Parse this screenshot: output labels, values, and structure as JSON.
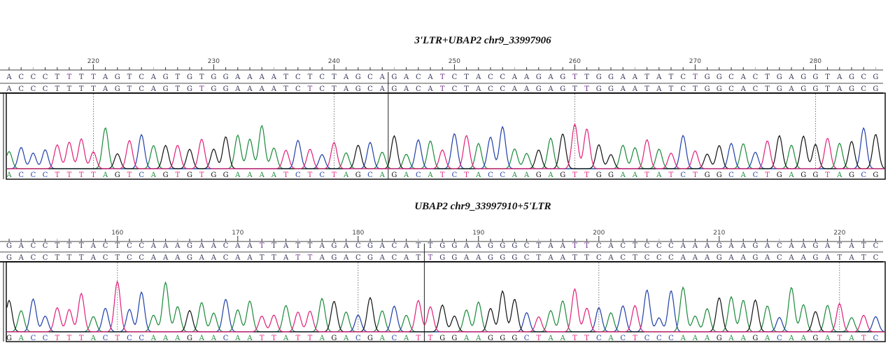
{
  "chart_data": [
    {
      "type": "line",
      "title": "3'LTR+UBAP2  chr9_33997906",
      "start_position": 213,
      "tick_labels": [
        "220",
        "230",
        "240",
        "250",
        "260",
        "270",
        "280"
      ],
      "segments": [
        "ACCCTTTTAGTCAGTGTGGAAAATCTCTAGCA",
        "GACATCTACCAAGAGTTGGAATATCTGGCACTGAGGTAGCG"
      ],
      "marked_positions": [
        220,
        240,
        260,
        280
      ]
    },
    {
      "type": "line",
      "title": "UBAP2  chr9_33997910+5'LTR",
      "start_position": 151,
      "tick_labels": [
        "160",
        "170",
        "180",
        "190",
        "200",
        "210",
        "220"
      ],
      "segments": [
        "GACCTTTACTCCAAAGAACAATTATTAGACGACAT",
        "TGGAAGGGCTAATTCACTCCCAAAGAAGACAAGATATC"
      ],
      "marked_positions": [
        160,
        180,
        200,
        220
      ]
    }
  ],
  "base_colors": {
    "A": "#1a8a3a",
    "C": "#1f3fa8",
    "G": "#111111",
    "T": "#e0207a"
  },
  "sequence_text_color": "#333355"
}
